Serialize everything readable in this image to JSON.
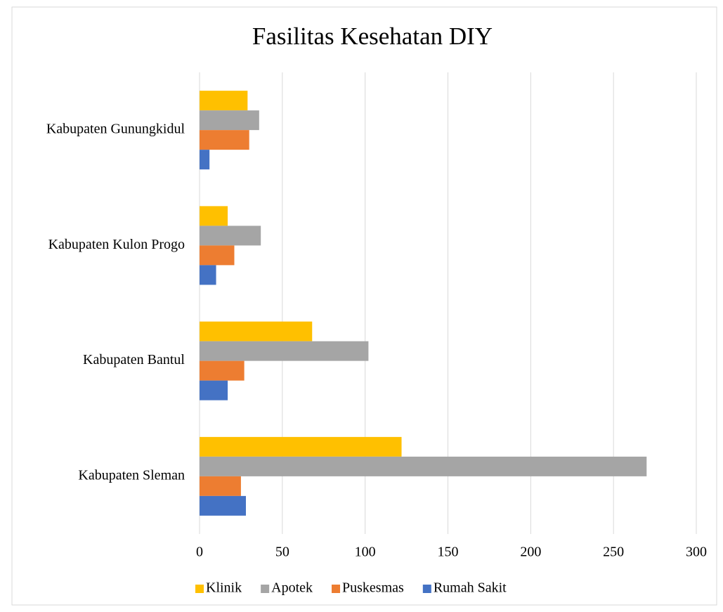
{
  "chart_data": {
    "type": "bar",
    "orientation": "horizontal",
    "title": "Fasilitas Kesehatan DIY",
    "categories": [
      "Kabupaten Sleman",
      "Kabupaten Bantul",
      "Kabupaten Kulon Progo",
      "Kabupaten Gunungkidul"
    ],
    "series": [
      {
        "name": "Klinik",
        "color": "#ffc000",
        "values": [
          122,
          68,
          17,
          29
        ]
      },
      {
        "name": "Apotek",
        "color": "#a5a5a5",
        "values": [
          270,
          102,
          37,
          36
        ]
      },
      {
        "name": "Puskesmas",
        "color": "#ed7d31",
        "values": [
          25,
          27,
          21,
          30
        ]
      },
      {
        "name": "Rumah Sakit",
        "color": "#4472c4",
        "values": [
          28,
          17,
          10,
          6
        ]
      }
    ],
    "xlim": [
      0,
      300
    ],
    "xticks": [
      0,
      50,
      100,
      150,
      200,
      250,
      300
    ],
    "grid": true,
    "legend": "bottom"
  }
}
